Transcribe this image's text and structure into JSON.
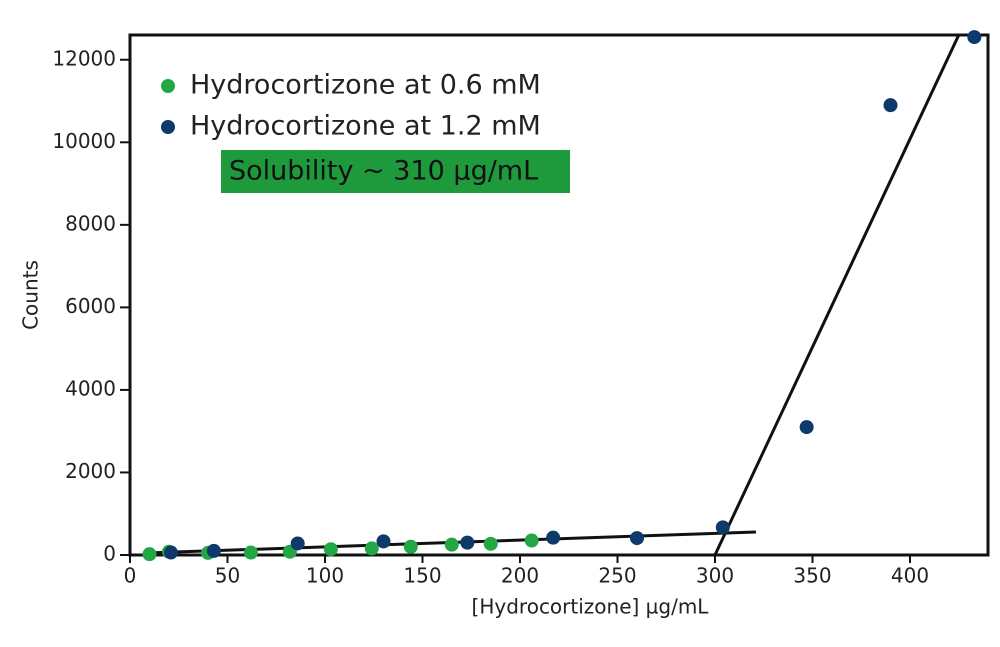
{
  "chart_data": {
    "type": "scatter",
    "xlabel": "[Hydrocortizone] µg/mL",
    "ylabel": "Counts",
    "annotation": "Solubility ~ 310 µg/mL",
    "annotation_color": "#1e9a3c",
    "xlim": [
      0,
      440
    ],
    "ylim": [
      0,
      12600
    ],
    "xticks": [
      0,
      50,
      100,
      150,
      200,
      250,
      300,
      350,
      400
    ],
    "yticks": [
      0,
      2000,
      4000,
      6000,
      8000,
      10000,
      12000
    ],
    "grid": false,
    "legend": "upper left",
    "series": [
      {
        "name": "Hydrocortizone at 0.6 mM",
        "color": "#23a744",
        "x": [
          10,
          20,
          40,
          62,
          82,
          103,
          124,
          144,
          165,
          185,
          206
        ],
        "values": [
          20,
          80,
          50,
          60,
          80,
          140,
          160,
          200,
          250,
          270,
          350
        ]
      },
      {
        "name": "Hydrocortizone at 1.2 mM",
        "color": "#0d3a6b",
        "x": [
          21,
          43,
          86,
          130,
          173,
          217,
          260,
          304,
          347,
          390,
          433
        ],
        "values": [
          60,
          100,
          280,
          330,
          300,
          420,
          410,
          670,
          3100,
          10900,
          12550
        ]
      }
    ],
    "fit_lines": [
      {
        "color": "#111111",
        "x": [
          10,
          321
        ],
        "values": [
          50,
          558
        ]
      },
      {
        "color": "#111111",
        "x": [
          300,
          425
        ],
        "values": [
          0,
          12600
        ]
      }
    ]
  }
}
